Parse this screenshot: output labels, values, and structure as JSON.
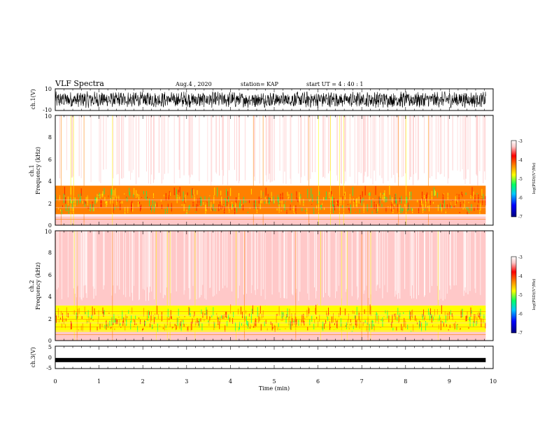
{
  "header": {
    "title": "VLF Spectra",
    "date": "Aug.4 , 2020",
    "station": "station= KAP",
    "start": "start UT = 4 : 40 : 1"
  },
  "chart_data": [
    {
      "type": "line",
      "panel": "ch1-waveform",
      "ylabel": "ch.1(V)",
      "ylim": [
        -10,
        10
      ],
      "xlim": [
        0,
        10
      ],
      "yticks": [
        "10",
        "-10"
      ],
      "description_values": {
        "x_range_min": [
          0,
          9.83
        ],
        "amplitude_approx_v": 6
      }
    },
    {
      "type": "heatmap",
      "panel": "ch1-spectrogram",
      "ylabel_line1": "ch.1",
      "ylabel_line2": "Frequency (kHz)",
      "ylim": [
        0,
        10
      ],
      "xlim": [
        0,
        10
      ],
      "data_end_min": 9.83,
      "yticks": [
        "0",
        "2",
        "4",
        "6",
        "8",
        "10"
      ],
      "colorbar": {
        "label": "log(PSD)(V²/Hz)",
        "ticks": [
          "-3",
          "-4",
          "-5",
          "-6",
          "-7"
        ],
        "range": [
          -7,
          -3
        ]
      },
      "bands_khz": [
        {
          "from": 0,
          "to": 0.8,
          "level": -3.3
        },
        {
          "from": 1.0,
          "to": 3.6,
          "level": -4.5
        },
        {
          "from": 3.6,
          "to": 10,
          "level": -3.2
        }
      ]
    },
    {
      "type": "heatmap",
      "panel": "ch2-spectrogram",
      "ylabel_line1": "ch.2",
      "ylabel_line2": "Frequency (kHz)",
      "ylim": [
        0,
        10
      ],
      "xlim": [
        0,
        10
      ],
      "data_end_min": 9.83,
      "yticks": [
        "0",
        "2",
        "4",
        "6",
        "8",
        "10"
      ],
      "colorbar": {
        "label": "log(PSD)(V²/Hz)",
        "ticks": [
          "-3",
          "-4",
          "-5",
          "-6",
          "-7"
        ],
        "range": [
          -7,
          -3
        ]
      },
      "bands_khz": [
        {
          "from": 0,
          "to": 0.8,
          "level": -3.6
        },
        {
          "from": 0.8,
          "to": 3.2,
          "level": -5.0
        },
        {
          "from": 3.2,
          "to": 10,
          "level": -3.3
        }
      ]
    },
    {
      "type": "line",
      "panel": "ch3-waveform",
      "ylabel": "ch.3(V)",
      "ylim": [
        -5,
        5
      ],
      "xlim": [
        0,
        10
      ],
      "yticks": [
        "5",
        "0",
        "-5"
      ],
      "level_v": -1.2
    }
  ],
  "xaxis": {
    "label": "Time (min)",
    "ticks": [
      "0",
      "1",
      "2",
      "3",
      "4",
      "5",
      "6",
      "7",
      "8",
      "9",
      "10"
    ]
  },
  "colors": {
    "colormap": [
      "#000080",
      "#0000ff",
      "#00c8ff",
      "#00ff64",
      "#64ff00",
      "#ffff00",
      "#ff8000",
      "#ff0000",
      "#ffc8c8",
      "#ffffff"
    ]
  }
}
